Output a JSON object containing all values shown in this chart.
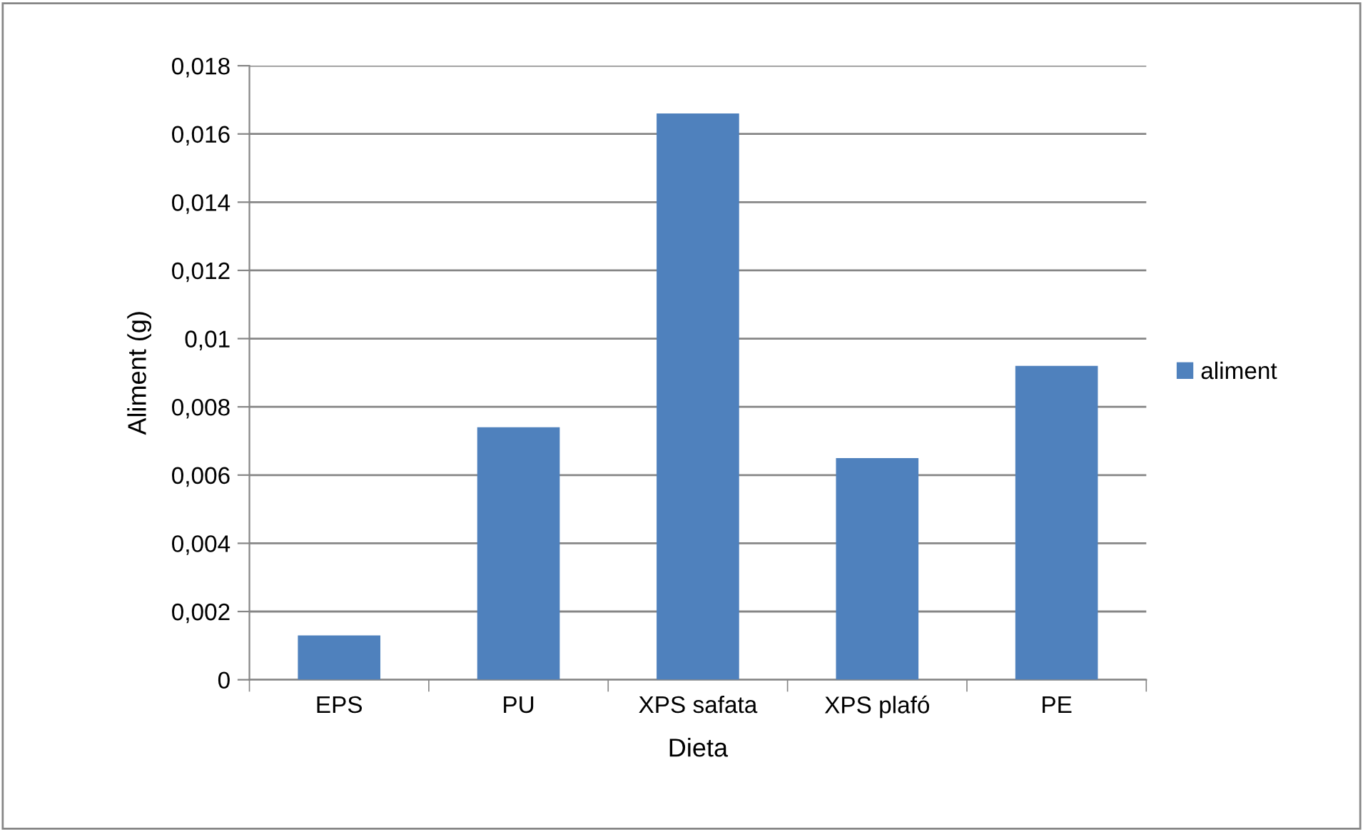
{
  "chart_data": {
    "type": "bar",
    "xlabel": "Dieta",
    "ylabel": "Aliment (g)",
    "categories": [
      "EPS",
      "PU",
      "XPS safata",
      "XPS plafó",
      "PE"
    ],
    "series": [
      {
        "name": "aliment",
        "color": "#4f81bd",
        "values": [
          0.0013,
          0.0074,
          0.0166,
          0.0065,
          0.0092
        ]
      }
    ],
    "ylim": [
      0,
      0.018
    ],
    "yticks": [
      {
        "value": 0,
        "label": "0"
      },
      {
        "value": 0.002,
        "label": "0,002"
      },
      {
        "value": 0.004,
        "label": "0,004"
      },
      {
        "value": 0.006,
        "label": "0,006"
      },
      {
        "value": 0.008,
        "label": "0,008"
      },
      {
        "value": 0.01,
        "label": "0,01"
      },
      {
        "value": 0.012,
        "label": "0,012"
      },
      {
        "value": 0.014,
        "label": "0,014"
      },
      {
        "value": 0.016,
        "label": "0,016"
      },
      {
        "value": 0.018,
        "label": "0,018"
      }
    ],
    "grid": "y",
    "legend": "right"
  }
}
